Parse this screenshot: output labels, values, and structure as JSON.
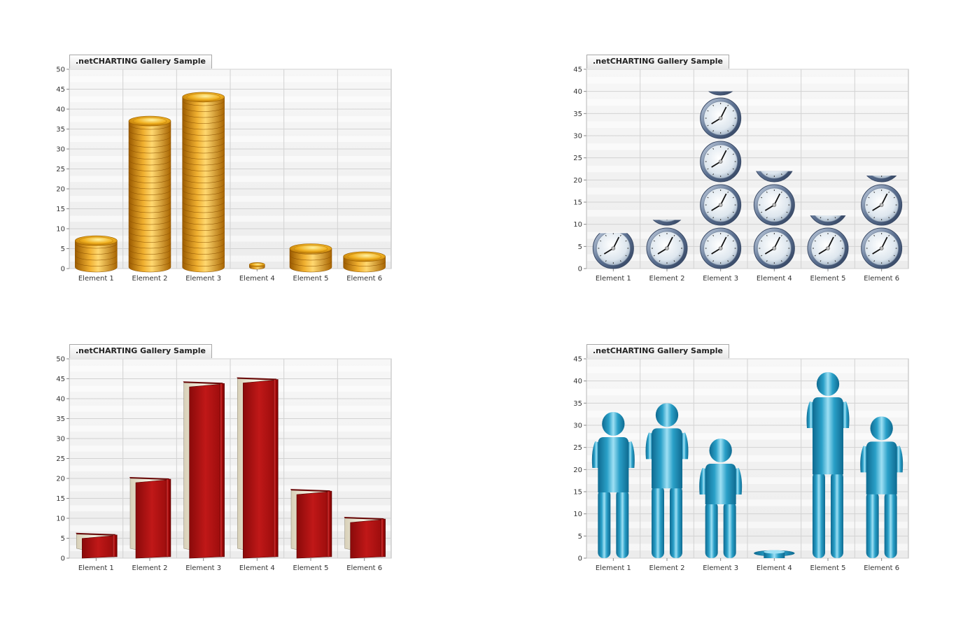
{
  "colors": {
    "coin": "#e0a020",
    "clock": "#6a84a8",
    "book": "#b01010",
    "person": "#2aa0c8"
  },
  "icons": [
    "coin-icon",
    "clock-icon",
    "book-icon",
    "person-icon"
  ],
  "chart_data": [
    {
      "type": "bar",
      "style": "coin-stack",
      "title": ".netCHARTING Gallery Sample",
      "categories": [
        "Element 1",
        "Element 2",
        "Element 3",
        "Element 4",
        "Element 5",
        "Element 6"
      ],
      "values": [
        7,
        37,
        43,
        1,
        5,
        3
      ],
      "ylim": [
        0,
        50
      ],
      "yticks": [
        0,
        5,
        10,
        15,
        20,
        25,
        30,
        35,
        40,
        45,
        50
      ],
      "xlabel": "",
      "ylabel": "",
      "grid": true
    },
    {
      "type": "bar",
      "style": "clock-stack",
      "title": ".netCHARTING Gallery Sample",
      "categories": [
        "Element 1",
        "Element 2",
        "Element 3",
        "Element 4",
        "Element 5",
        "Element 6"
      ],
      "values": [
        8,
        11,
        40,
        22,
        12,
        21
      ],
      "ylim": [
        0,
        45
      ],
      "yticks": [
        0,
        5,
        10,
        15,
        20,
        25,
        30,
        35,
        40,
        45
      ],
      "xlabel": "",
      "ylabel": "",
      "grid": true
    },
    {
      "type": "bar",
      "style": "book",
      "title": ".netCHARTING Gallery Sample",
      "categories": [
        "Element 1",
        "Element 2",
        "Element 3",
        "Element 4",
        "Element 5",
        "Element 6"
      ],
      "values": [
        6,
        20,
        44,
        45,
        17,
        10
      ],
      "ylim": [
        0,
        50
      ],
      "yticks": [
        0,
        5,
        10,
        15,
        20,
        25,
        30,
        35,
        40,
        45,
        50
      ],
      "xlabel": "",
      "ylabel": "",
      "grid": true
    },
    {
      "type": "bar",
      "style": "person",
      "title": ".netCHARTING Gallery Sample",
      "categories": [
        "Element 1",
        "Element 2",
        "Element 3",
        "Element 4",
        "Element 5",
        "Element 6"
      ],
      "values": [
        33,
        35,
        27,
        3,
        42,
        32
      ],
      "ylim": [
        0,
        45
      ],
      "yticks": [
        0,
        5,
        10,
        15,
        20,
        25,
        30,
        35,
        40,
        45
      ],
      "xlabel": "",
      "ylabel": "",
      "grid": true
    }
  ]
}
